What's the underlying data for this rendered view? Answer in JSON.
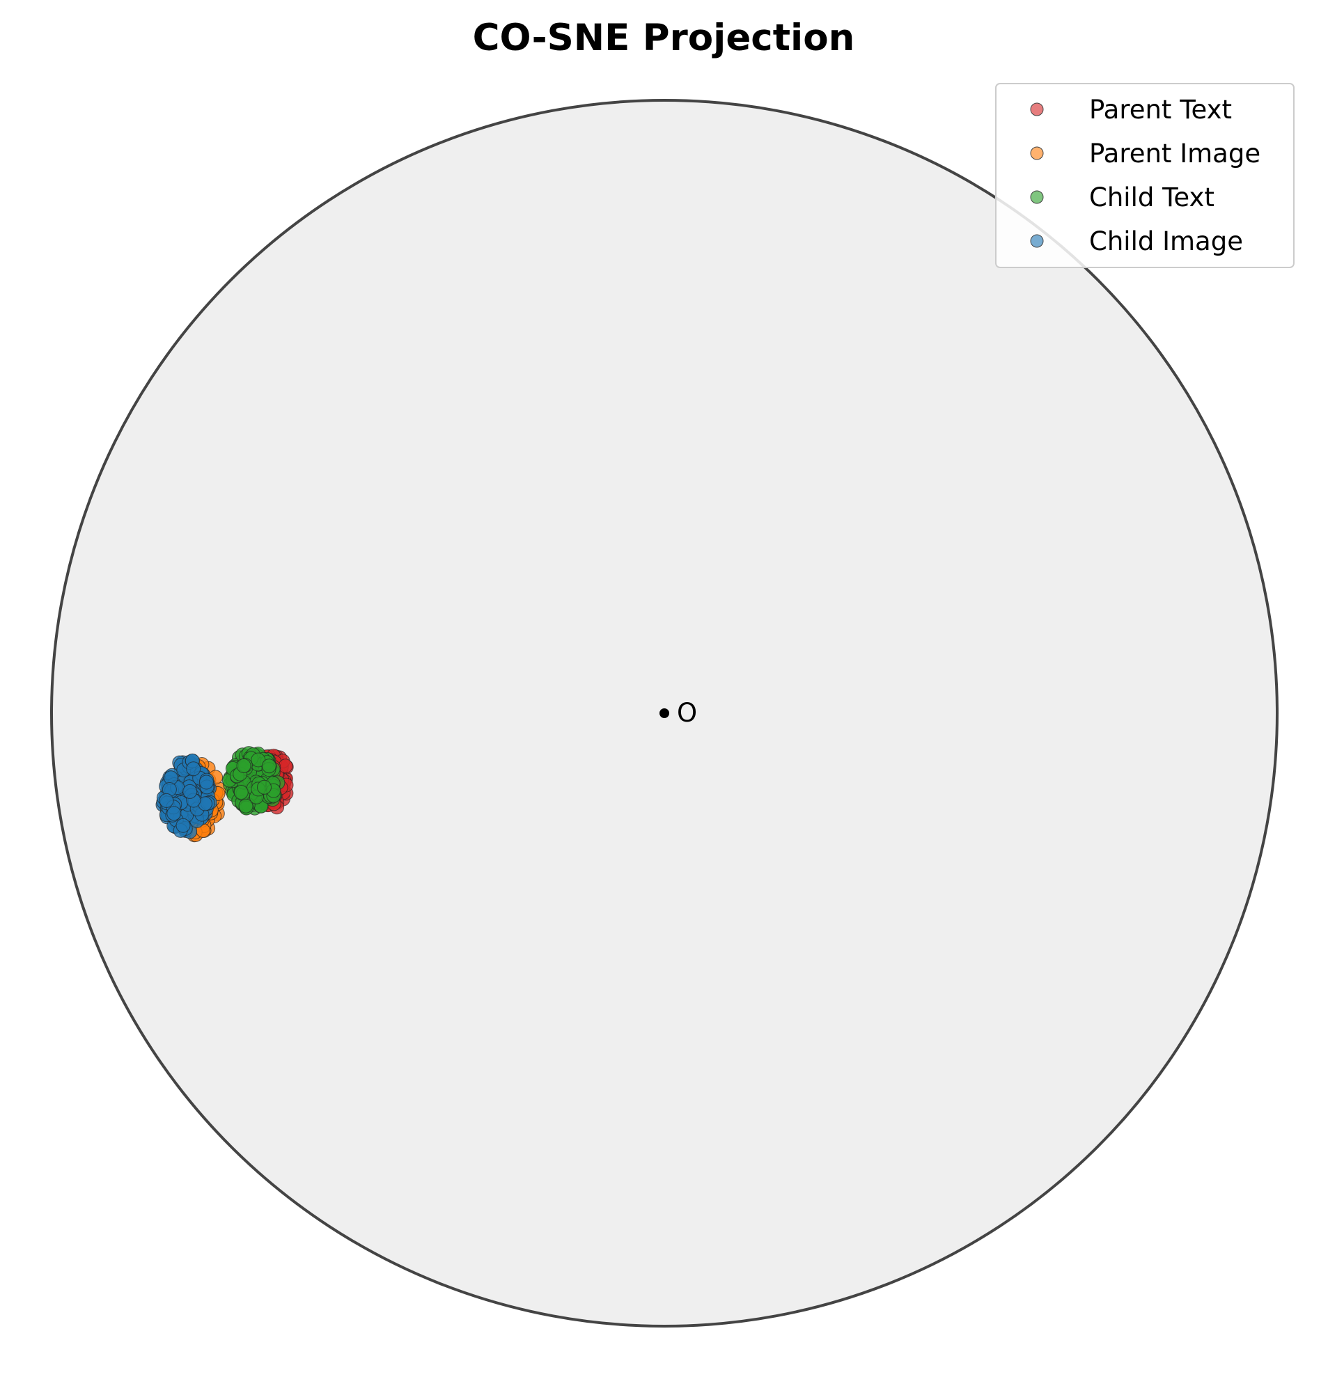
{
  "chart_data": {
    "type": "scatter",
    "title": "CO-SNE Projection",
    "xlabel": "",
    "ylabel": "",
    "xlim": [
      -1,
      1
    ],
    "ylim": [
      -1,
      1
    ],
    "grid": false,
    "boundary": "unit-disk",
    "origin": {
      "label": "O",
      "x": 0,
      "y": 0
    },
    "legend_position": "top-right",
    "series": [
      {
        "name": "Parent Text",
        "color": "#d62728",
        "center": [
          -0.64,
          -0.11
        ],
        "spread": [
          0.028,
          0.045
        ],
        "count": 90
      },
      {
        "name": "Parent Image",
        "color": "#ff7f0e",
        "center": [
          -0.76,
          -0.14
        ],
        "spread": [
          0.035,
          0.06
        ],
        "count": 90
      },
      {
        "name": "Child Text",
        "color": "#2ca02c",
        "center": [
          -0.67,
          -0.11
        ],
        "spread": [
          0.04,
          0.048
        ],
        "count": 150
      },
      {
        "name": "Child Image",
        "color": "#1f77b4",
        "center": [
          -0.78,
          -0.135
        ],
        "spread": [
          0.04,
          0.06
        ],
        "count": 150
      }
    ]
  }
}
